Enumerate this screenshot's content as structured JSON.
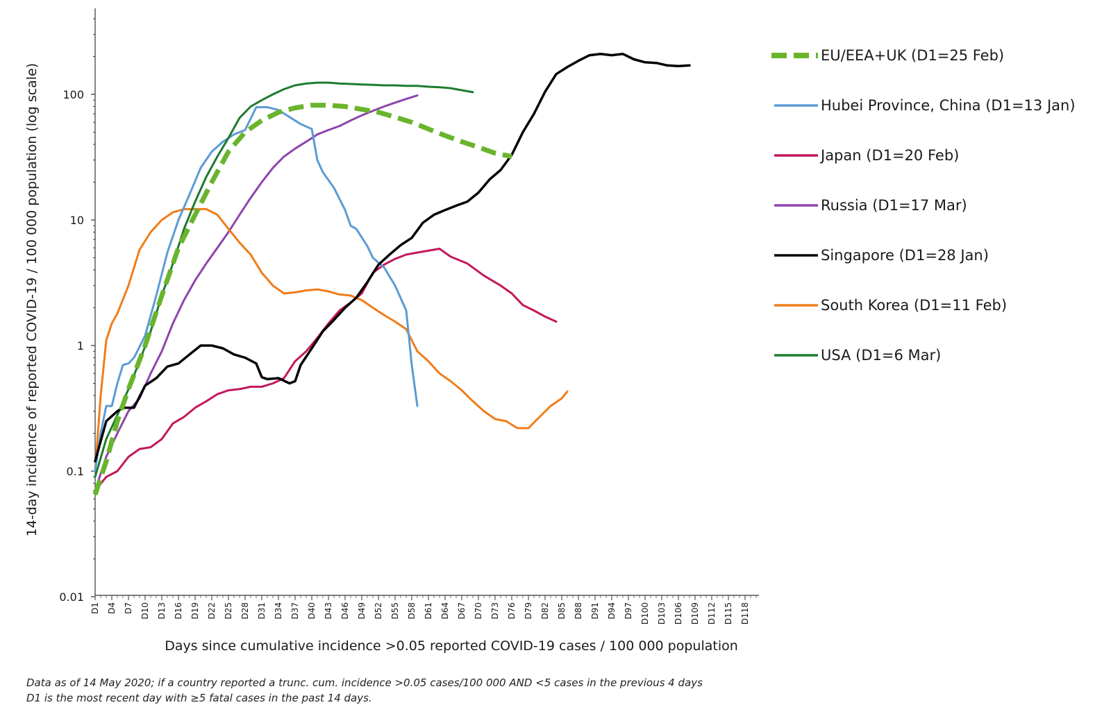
{
  "chart_data": {
    "type": "line",
    "ylabel": "14-day incidence of reported COVID-19 / 100 000 population (log scale)",
    "xlabel": "Days since cumulative incidence >0.05 reported COVID-19 cases / 100 000 population",
    "yscale": "log",
    "ylim": [
      0.01,
      500
    ],
    "yticks": [
      "0.01",
      "0.1",
      "1",
      "10",
      "100"
    ],
    "ytick_values": [
      0.01,
      0.1,
      1,
      10,
      100
    ],
    "xlim": [
      1,
      120
    ],
    "xticks": [
      "D1",
      "D4",
      "D7",
      "D10",
      "D13",
      "D16",
      "D19",
      "D22",
      "D25",
      "D28",
      "D31",
      "D34",
      "D37",
      "D40",
      "D43",
      "D46",
      "D49",
      "D52",
      "D55",
      "D58",
      "D61",
      "D64",
      "D67",
      "D70",
      "D73",
      "D76",
      "D79",
      "D82",
      "D85",
      "D88",
      "D91",
      "D94",
      "D97",
      "D100",
      "D103",
      "D106",
      "D109",
      "D112",
      "D115",
      "D118"
    ],
    "legend_position": "right",
    "series": [
      {
        "name": "EU/EEA+UK  (D1=25 Feb)",
        "color": "#6ab42d",
        "dashed": true,
        "width": 7,
        "points": [
          [
            1,
            0.065
          ],
          [
            3,
            0.12
          ],
          [
            5,
            0.25
          ],
          [
            7,
            0.45
          ],
          [
            10,
            1.0
          ],
          [
            13,
            2.5
          ],
          [
            16,
            6
          ],
          [
            19,
            11
          ],
          [
            22,
            20
          ],
          [
            25,
            35
          ],
          [
            28,
            50
          ],
          [
            31,
            62
          ],
          [
            34,
            72
          ],
          [
            37,
            78
          ],
          [
            40,
            82
          ],
          [
            43,
            82
          ],
          [
            46,
            80
          ],
          [
            49,
            76
          ],
          [
            52,
            72
          ],
          [
            55,
            66
          ],
          [
            58,
            60
          ],
          [
            61,
            53
          ],
          [
            64,
            47
          ],
          [
            67,
            42
          ],
          [
            70,
            38
          ],
          [
            73,
            34
          ],
          [
            76,
            32
          ]
        ]
      },
      {
        "name": "Hubei Province, China  (D1=13 Jan)",
        "color": "#5b9bd5",
        "dashed": false,
        "width": 3,
        "points": [
          [
            1,
            0.1
          ],
          [
            2,
            0.2
          ],
          [
            3,
            0.33
          ],
          [
            4,
            0.33
          ],
          [
            5,
            0.5
          ],
          [
            6,
            0.7
          ],
          [
            7,
            0.72
          ],
          [
            8,
            0.8
          ],
          [
            10,
            1.2
          ],
          [
            12,
            2.5
          ],
          [
            14,
            5.5
          ],
          [
            16,
            10
          ],
          [
            18,
            16
          ],
          [
            20,
            26
          ],
          [
            22,
            35
          ],
          [
            24,
            42
          ],
          [
            26,
            48
          ],
          [
            28,
            52
          ],
          [
            30,
            79
          ],
          [
            32,
            79
          ],
          [
            34,
            75
          ],
          [
            36,
            66
          ],
          [
            38,
            58
          ],
          [
            40,
            53
          ],
          [
            41,
            30
          ],
          [
            42,
            24
          ],
          [
            44,
            18
          ],
          [
            46,
            12
          ],
          [
            47,
            9
          ],
          [
            48,
            8.5
          ],
          [
            50,
            6.2
          ],
          [
            51,
            5.0
          ],
          [
            53,
            4.2
          ],
          [
            55,
            3.0
          ],
          [
            57,
            1.9
          ],
          [
            58,
            0.7
          ],
          [
            59,
            0.33
          ]
        ]
      },
      {
        "name": "Japan  (D1=20 Feb)",
        "color": "#c2185b",
        "dashed": false,
        "width": 3,
        "points": [
          [
            1,
            0.07
          ],
          [
            3,
            0.09
          ],
          [
            5,
            0.1
          ],
          [
            7,
            0.13
          ],
          [
            9,
            0.15
          ],
          [
            11,
            0.155
          ],
          [
            13,
            0.18
          ],
          [
            15,
            0.24
          ],
          [
            17,
            0.27
          ],
          [
            19,
            0.32
          ],
          [
            21,
            0.36
          ],
          [
            23,
            0.41
          ],
          [
            25,
            0.44
          ],
          [
            27,
            0.45
          ],
          [
            29,
            0.47
          ],
          [
            31,
            0.47
          ],
          [
            33,
            0.5
          ],
          [
            35,
            0.55
          ],
          [
            37,
            0.75
          ],
          [
            39,
            0.9
          ],
          [
            41,
            1.15
          ],
          [
            43,
            1.5
          ],
          [
            45,
            1.9
          ],
          [
            47,
            2.2
          ],
          [
            49,
            2.6
          ],
          [
            51,
            3.8
          ],
          [
            53,
            4.4
          ],
          [
            55,
            4.9
          ],
          [
            57,
            5.3
          ],
          [
            60,
            5.6
          ],
          [
            63,
            5.9
          ],
          [
            65,
            5.1
          ],
          [
            68,
            4.5
          ],
          [
            71,
            3.6
          ],
          [
            74,
            3.0
          ],
          [
            76,
            2.6
          ],
          [
            78,
            2.1
          ],
          [
            80,
            1.9
          ],
          [
            82,
            1.7
          ],
          [
            84,
            1.55
          ]
        ]
      },
      {
        "name": "Russia  (D1=17 Mar)",
        "color": "#8e44ad",
        "dashed": false,
        "width": 3,
        "points": [
          [
            1,
            0.07
          ],
          [
            3,
            0.13
          ],
          [
            5,
            0.2
          ],
          [
            7,
            0.3
          ],
          [
            9,
            0.38
          ],
          [
            11,
            0.6
          ],
          [
            13,
            0.9
          ],
          [
            15,
            1.5
          ],
          [
            17,
            2.3
          ],
          [
            19,
            3.3
          ],
          [
            21,
            4.5
          ],
          [
            23,
            6
          ],
          [
            25,
            8
          ],
          [
            27,
            11
          ],
          [
            29,
            15
          ],
          [
            31,
            20
          ],
          [
            33,
            26
          ],
          [
            35,
            32
          ],
          [
            37,
            37
          ],
          [
            39,
            42
          ],
          [
            41,
            48
          ],
          [
            43,
            52
          ],
          [
            45,
            56
          ],
          [
            47,
            62
          ],
          [
            49,
            68
          ],
          [
            51,
            74
          ],
          [
            53,
            80
          ],
          [
            55,
            86
          ],
          [
            57,
            92
          ],
          [
            59,
            98
          ]
        ]
      },
      {
        "name": "Singapore  (D1=28 Jan)",
        "color": "#000000",
        "dashed": false,
        "width": 3.5,
        "points": [
          [
            1,
            0.12
          ],
          [
            3,
            0.25
          ],
          [
            5,
            0.3
          ],
          [
            6,
            0.32
          ],
          [
            8,
            0.32
          ],
          [
            10,
            0.48
          ],
          [
            12,
            0.55
          ],
          [
            14,
            0.68
          ],
          [
            16,
            0.72
          ],
          [
            18,
            0.85
          ],
          [
            20,
            1.0
          ],
          [
            22,
            1.0
          ],
          [
            24,
            0.95
          ],
          [
            26,
            0.85
          ],
          [
            28,
            0.8
          ],
          [
            30,
            0.72
          ],
          [
            31,
            0.56
          ],
          [
            32,
            0.54
          ],
          [
            34,
            0.55
          ],
          [
            36,
            0.5
          ],
          [
            37,
            0.52
          ],
          [
            38,
            0.7
          ],
          [
            40,
            0.95
          ],
          [
            42,
            1.3
          ],
          [
            44,
            1.6
          ],
          [
            46,
            2.0
          ],
          [
            48,
            2.4
          ],
          [
            50,
            3.2
          ],
          [
            52,
            4.4
          ],
          [
            54,
            5.3
          ],
          [
            56,
            6.3
          ],
          [
            58,
            7.2
          ],
          [
            60,
            9.5
          ],
          [
            62,
            11
          ],
          [
            64,
            12
          ],
          [
            66,
            13
          ],
          [
            68,
            14
          ],
          [
            70,
            16.5
          ],
          [
            72,
            21
          ],
          [
            74,
            25
          ],
          [
            76,
            33
          ],
          [
            78,
            50
          ],
          [
            80,
            70
          ],
          [
            82,
            105
          ],
          [
            84,
            145
          ],
          [
            86,
            165
          ],
          [
            88,
            185
          ],
          [
            90,
            205
          ],
          [
            92,
            210
          ],
          [
            94,
            205
          ],
          [
            96,
            210
          ],
          [
            98,
            190
          ],
          [
            100,
            180
          ],
          [
            102,
            178
          ],
          [
            104,
            170
          ],
          [
            106,
            168
          ],
          [
            108,
            170
          ]
        ]
      },
      {
        "name": "South Korea  (D1=11 Feb)",
        "color": "#f07d19",
        "dashed": false,
        "width": 3,
        "points": [
          [
            1,
            0.1
          ],
          [
            2,
            0.4
          ],
          [
            3,
            1.1
          ],
          [
            4,
            1.5
          ],
          [
            5,
            1.8
          ],
          [
            7,
            3.0
          ],
          [
            9,
            5.8
          ],
          [
            11,
            8.0
          ],
          [
            13,
            10.0
          ],
          [
            15,
            11.5
          ],
          [
            17,
            12.2
          ],
          [
            19,
            12.2
          ],
          [
            21,
            12.2
          ],
          [
            23,
            11.0
          ],
          [
            25,
            8.5
          ],
          [
            27,
            6.6
          ],
          [
            29,
            5.3
          ],
          [
            31,
            3.8
          ],
          [
            33,
            3.0
          ],
          [
            35,
            2.6
          ],
          [
            37,
            2.65
          ],
          [
            39,
            2.75
          ],
          [
            41,
            2.8
          ],
          [
            43,
            2.7
          ],
          [
            45,
            2.55
          ],
          [
            47,
            2.5
          ],
          [
            49,
            2.3
          ],
          [
            51,
            2.0
          ],
          [
            53,
            1.75
          ],
          [
            55,
            1.55
          ],
          [
            57,
            1.35
          ],
          [
            59,
            0.9
          ],
          [
            61,
            0.75
          ],
          [
            63,
            0.6
          ],
          [
            65,
            0.52
          ],
          [
            67,
            0.44
          ],
          [
            69,
            0.36
          ],
          [
            71,
            0.3
          ],
          [
            73,
            0.26
          ],
          [
            75,
            0.25
          ],
          [
            77,
            0.22
          ],
          [
            79,
            0.22
          ],
          [
            81,
            0.27
          ],
          [
            83,
            0.33
          ],
          [
            85,
            0.38
          ],
          [
            86,
            0.43
          ]
        ]
      },
      {
        "name": "USA  (D1=6 Mar)",
        "color": "#1e7b2e",
        "dashed": false,
        "width": 3,
        "points": [
          [
            1,
            0.09
          ],
          [
            3,
            0.18
          ],
          [
            5,
            0.28
          ],
          [
            7,
            0.45
          ],
          [
            9,
            0.75
          ],
          [
            11,
            1.3
          ],
          [
            13,
            2.5
          ],
          [
            15,
            4.5
          ],
          [
            17,
            8.5
          ],
          [
            19,
            14
          ],
          [
            21,
            22
          ],
          [
            23,
            32
          ],
          [
            25,
            45
          ],
          [
            27,
            65
          ],
          [
            29,
            80
          ],
          [
            31,
            90
          ],
          [
            33,
            100
          ],
          [
            35,
            110
          ],
          [
            37,
            118
          ],
          [
            39,
            122
          ],
          [
            41,
            124
          ],
          [
            43,
            124
          ],
          [
            45,
            122
          ],
          [
            47,
            121
          ],
          [
            49,
            120
          ],
          [
            51,
            119
          ],
          [
            53,
            118
          ],
          [
            55,
            118
          ],
          [
            57,
            117
          ],
          [
            59,
            117
          ],
          [
            61,
            115
          ],
          [
            63,
            114
          ],
          [
            65,
            112
          ],
          [
            67,
            108
          ],
          [
            69,
            104
          ]
        ]
      }
    ]
  },
  "footnote": {
    "line1": "Data as of 14 May 2020; if a country reported a trunc. cum. incidence >0.05 cases/100 000 AND <5 cases in the previous 4 days",
    "line2": "D1 is the most recent day with ≥5 fatal cases in the past 14 days."
  }
}
